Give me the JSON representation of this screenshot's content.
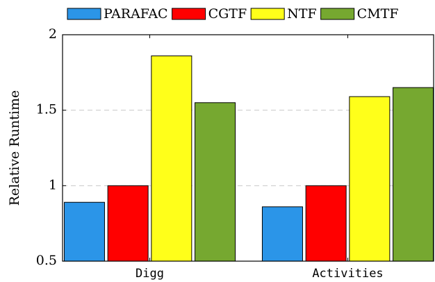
{
  "chart_data": {
    "type": "bar",
    "y_label": "Relative Runtime",
    "categories": [
      "Digg",
      "Activities"
    ],
    "series": [
      {
        "name": "PARAFAC",
        "color": "#2b95e8",
        "values": [
          0.89,
          0.86
        ]
      },
      {
        "name": "CGTF",
        "color": "#ff0000",
        "values": [
          1.0,
          1.0
        ]
      },
      {
        "name": "NTF",
        "color": "#ffff1a",
        "values": [
          1.86,
          1.59
        ]
      },
      {
        "name": "CMTF",
        "color": "#76a830",
        "values": [
          1.55,
          1.65
        ]
      }
    ],
    "ylim": [
      0.5,
      2
    ],
    "yticks": [
      0.5,
      1,
      1.5,
      2
    ],
    "grid": true,
    "legend": "top"
  }
}
